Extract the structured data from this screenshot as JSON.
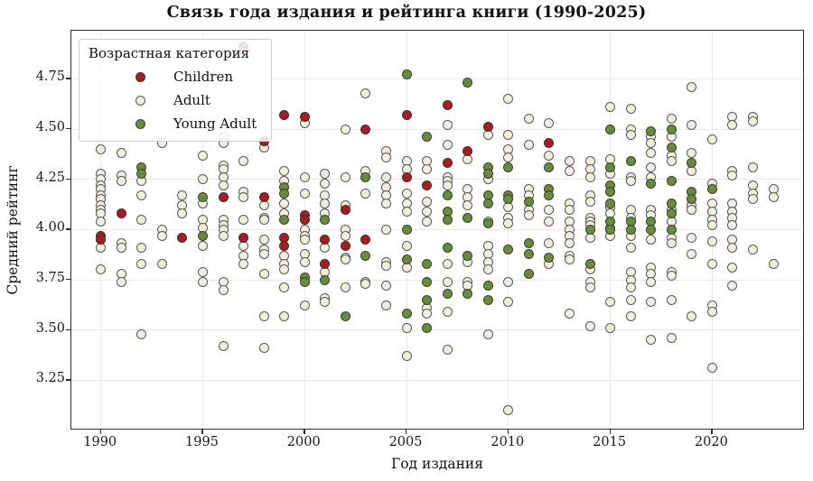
{
  "title": "Связь года издания и рейтинга книги (1990-2025)",
  "axes": {
    "x_label": "Год издания",
    "y_label": "Средний рейтинг",
    "x_ticks": [
      1990,
      1995,
      2000,
      2005,
      2010,
      2015,
      2020
    ],
    "y_ticks": [
      3.25,
      3.5,
      3.75,
      4.0,
      4.25,
      4.5,
      4.75
    ],
    "x_range": [
      1988.55,
      2024.55
    ],
    "y_range": [
      3.0,
      4.99
    ],
    "grid": true
  },
  "legend": {
    "title": "Возрастная категория",
    "position": "upper left",
    "items": [
      {
        "label": "Children",
        "color": "#a22025"
      },
      {
        "label": "Adult",
        "color": "#f2efe2"
      },
      {
        "label": "Young Adult",
        "color": "#6b8a3d"
      }
    ]
  },
  "colors": {
    "children": "#a22025",
    "adult": "#f2efe2",
    "young_adult": "#6b8a3d",
    "marker_edge": "#2d2d2d",
    "grid": "#f2e7e7",
    "axis": "#2e2e2e"
  },
  "chart_data": {
    "type": "scatter",
    "title": "Связь года издания и рейтинга книги (1990-2025)",
    "xlabel": "Год издания",
    "ylabel": "Средний рейтинг",
    "xlim": [
      1988.55,
      2024.55
    ],
    "ylim": [
      3.0,
      4.99
    ],
    "series": [
      {
        "name": "Children",
        "color": "#a22025",
        "z": 3,
        "points_by_year": {
          "1990": [
            3.97,
            3.95
          ],
          "1991": [
            4.08
          ],
          "1994": [
            3.96
          ],
          "1996": [
            4.16
          ],
          "1997": [
            4.91,
            3.96
          ],
          "1998": [
            4.44,
            4.16
          ],
          "1999": [
            4.57,
            3.96,
            3.92
          ],
          "2000": [
            4.56,
            4.07,
            4.05
          ],
          "2001": [
            3.95,
            3.83
          ],
          "2002": [
            4.1,
            3.92
          ],
          "2003": [
            4.5,
            3.95
          ],
          "2005": [
            4.57,
            4.26
          ],
          "2006": [
            4.22
          ],
          "2007": [
            4.62,
            4.33
          ],
          "2008": [
            4.39
          ],
          "2009": [
            4.51
          ],
          "2012": [
            4.43
          ]
        }
      },
      {
        "name": "Adult",
        "color": "#f2efe2",
        "z": 1,
        "points_by_year": {
          "1990": [
            4.4,
            4.28,
            4.25,
            4.22,
            4.2,
            4.17,
            4.15,
            4.12,
            4.1,
            4.08,
            4.04,
            3.91,
            3.8
          ],
          "1991": [
            4.38,
            4.27,
            4.24,
            3.93,
            3.91,
            3.78,
            3.74
          ],
          "1992": [
            4.24,
            4.17,
            4.05,
            3.91,
            3.83,
            3.48
          ],
          "1993": [
            4.43,
            4.0,
            3.97,
            3.83
          ],
          "1994": [
            4.17,
            4.12,
            4.08
          ],
          "1995": [
            4.37,
            4.25,
            4.13,
            4.05,
            4.01,
            3.92,
            3.79,
            3.74
          ],
          "1996": [
            4.46,
            4.43,
            4.32,
            4.3,
            4.26,
            4.22,
            4.05,
            4.02,
            4.0,
            3.97,
            3.74,
            3.7,
            3.42
          ],
          "1997": [
            4.34,
            4.19,
            4.16,
            4.05,
            3.92,
            3.87,
            3.83
          ],
          "1998": [
            4.41,
            4.12,
            4.06,
            4.05,
            3.95,
            3.9,
            3.88,
            3.78,
            3.57,
            3.41
          ],
          "1999": [
            4.29,
            4.24,
            4.13,
            4.08,
            3.87,
            3.83,
            3.8,
            3.71,
            3.57
          ],
          "2000": [
            4.53,
            4.26,
            4.18,
            4.0,
            3.97,
            3.95,
            3.88,
            3.84,
            3.62
          ],
          "2001": [
            4.28,
            4.23,
            4.17,
            4.13,
            4.08,
            3.91,
            3.79,
            3.66,
            3.64
          ],
          "2002": [
            4.5,
            4.26,
            4.12,
            4.0,
            3.97,
            3.86,
            3.85,
            3.71
          ],
          "2003": [
            4.68,
            4.29,
            4.18,
            3.74,
            3.73
          ],
          "2004": [
            4.39,
            4.36,
            4.26,
            4.21,
            4.17,
            4.13,
            4.0,
            3.84,
            3.82,
            3.72,
            3.62
          ],
          "2005": [
            4.34,
            4.3,
            4.18,
            4.13,
            4.09,
            3.92,
            3.81,
            3.51,
            3.37
          ],
          "2006": [
            4.34,
            4.3,
            4.14,
            4.09,
            4.04,
            3.61,
            3.58
          ],
          "2007": [
            4.52,
            4.42,
            4.26,
            4.24,
            4.22,
            3.83,
            3.74,
            3.59,
            3.4
          ],
          "2008": [
            4.35,
            4.2,
            4.16,
            4.12,
            3.84,
            3.74,
            3.72
          ],
          "2009": [
            4.47,
            4.25,
            4.04,
            3.92,
            3.88,
            3.84,
            3.8,
            3.48
          ],
          "2010": [
            4.65,
            4.47,
            4.4,
            4.36,
            4.11,
            4.06,
            4.03,
            3.74,
            3.64,
            3.1
          ],
          "2011": [
            4.55,
            4.42,
            4.2,
            4.17,
            4.1,
            4.07
          ],
          "2012": [
            4.53,
            4.37,
            4.1,
            4.04,
            3.93,
            3.83
          ],
          "2013": [
            4.34,
            4.29,
            4.13,
            4.1,
            4.04,
            4.0,
            3.97,
            3.93,
            3.87,
            3.85,
            3.58
          ],
          "2014": [
            4.34,
            4.3,
            4.26,
            4.17,
            4.14,
            4.06,
            4.04,
            4.02,
            3.96,
            3.8,
            3.74,
            3.71,
            3.52
          ],
          "2015": [
            4.61,
            4.35,
            4.28,
            4.11,
            4.08,
            4.01,
            3.97,
            3.64,
            3.51
          ],
          "2016": [
            4.6,
            4.5,
            4.47,
            4.26,
            4.24,
            4.1,
            4.06,
            3.97,
            3.91,
            3.79,
            3.75,
            3.71,
            3.65,
            3.57
          ],
          "2017": [
            4.46,
            4.43,
            4.38,
            4.31,
            4.26,
            4.1,
            4.07,
            3.95,
            3.81,
            3.78,
            3.74,
            3.64,
            3.45
          ],
          "2018": [
            4.55,
            4.46,
            4.37,
            4.34,
            4.1,
            4.04,
            3.96,
            3.93,
            3.79,
            3.77,
            3.65,
            3.46
          ],
          "2019": [
            4.71,
            4.52,
            4.38,
            4.29,
            4.12,
            4.1,
            3.96,
            3.88,
            3.57
          ],
          "2020": [
            4.45,
            4.23,
            4.13,
            4.09,
            4.05,
            4.02,
            3.94,
            3.83,
            3.62,
            3.59,
            3.31
          ],
          "2021": [
            4.56,
            4.52,
            4.29,
            4.27,
            4.13,
            4.09,
            4.06,
            4.02,
            3.95,
            3.91,
            3.81,
            3.72
          ],
          "2022": [
            4.56,
            4.54,
            4.31,
            4.22,
            4.18,
            4.15,
            3.9
          ],
          "2023": [
            4.2,
            4.16,
            3.83
          ]
        }
      },
      {
        "name": "Young Adult",
        "color": "#6b8a3d",
        "z": 2,
        "points_by_year": {
          "1992": [
            4.31,
            4.28
          ],
          "1995": [
            4.16,
            3.97
          ],
          "1999": [
            4.21,
            4.18,
            4.05
          ],
          "2000": [
            3.76,
            3.74
          ],
          "2001": [
            4.05,
            3.75
          ],
          "2002": [
            3.57
          ],
          "2003": [
            4.26,
            3.87
          ],
          "2005": [
            4.77,
            4.0,
            3.85,
            3.58
          ],
          "2006": [
            4.46,
            3.83,
            3.74,
            3.65,
            3.51
          ],
          "2007": [
            4.17,
            4.09,
            4.05,
            3.91,
            3.68
          ],
          "2008": [
            4.73,
            4.06,
            3.87,
            3.68
          ],
          "2009": [
            4.31,
            4.28,
            4.17,
            4.13,
            4.03,
            3.72,
            3.65
          ],
          "2010": [
            4.31,
            4.17,
            4.15,
            3.9
          ],
          "2011": [
            4.14,
            3.93,
            3.88,
            3.78
          ],
          "2012": [
            4.31,
            4.2,
            4.17,
            3.86
          ],
          "2014": [
            4.0,
            3.83
          ],
          "2015": [
            4.5,
            4.31,
            4.22,
            4.19,
            4.13,
            4.04,
            4.0
          ],
          "2016": [
            4.34,
            4.04,
            4.0
          ],
          "2017": [
            4.49,
            4.23,
            4.04,
            4.0
          ],
          "2018": [
            4.5,
            4.41,
            4.24,
            4.13,
            4.08,
            4.0
          ],
          "2019": [
            4.33,
            4.19,
            4.15
          ],
          "2020": [
            4.2
          ]
        }
      }
    ]
  }
}
